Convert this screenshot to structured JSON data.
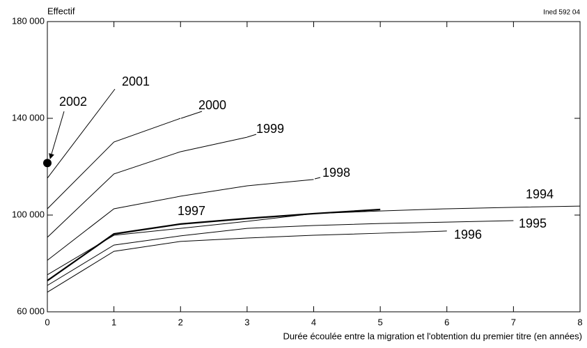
{
  "chart_data": {
    "type": "line",
    "y_label": "Effectif",
    "x_label": "Durée écoulée entre la migration et l'obtention du premier titre (en années)",
    "source": "Ined 592 04",
    "x": [
      0,
      1,
      2,
      3,
      4,
      5,
      6,
      7,
      8
    ],
    "xlim": [
      0,
      8
    ],
    "xticks": [
      0,
      1,
      2,
      3,
      4,
      5,
      6,
      7,
      8
    ],
    "ylim": [
      60000,
      180000
    ],
    "yticks": [
      {
        "value": 60000,
        "label": "60 000"
      },
      {
        "value": 100000,
        "label": "100 000"
      },
      {
        "value": 140000,
        "label": "140 000"
      },
      {
        "value": 180000,
        "label": "180 000"
      }
    ],
    "series": [
      {
        "name": "2002",
        "color": "#000000",
        "marker": "dot",
        "values": [
          121500,
          null,
          null,
          null,
          null,
          null,
          null,
          null,
          null
        ]
      },
      {
        "name": "2001",
        "color": "#000000",
        "values": [
          115000,
          null,
          null,
          null,
          null,
          null,
          null,
          null,
          null
        ]
      },
      {
        "name": "2000",
        "color": "#000000",
        "values": [
          102600,
          130200,
          140000,
          null,
          null,
          null,
          null,
          null,
          null
        ]
      },
      {
        "name": "1999",
        "color": "#000000",
        "values": [
          90800,
          117000,
          126200,
          132200,
          null,
          null,
          null,
          null,
          null
        ]
      },
      {
        "name": "1998",
        "color": "#000000",
        "values": [
          81300,
          102600,
          107800,
          112100,
          114700,
          null,
          null,
          null,
          null
        ]
      },
      {
        "name": "1997",
        "color": "#000000",
        "line_width": 2.2,
        "values": [
          72900,
          92200,
          96300,
          98600,
          100600,
          102300,
          null,
          null,
          null
        ]
      },
      {
        "name": "1994",
        "color": "#000000",
        "values": [
          75300,
          91650,
          94500,
          97400,
          100600,
          101700,
          102600,
          103200,
          103700
        ]
      },
      {
        "name": "1995",
        "color": "#000000",
        "values": [
          70900,
          87600,
          91400,
          94500,
          95700,
          96500,
          97100,
          97700,
          null
        ]
      },
      {
        "name": "1996",
        "color": "#000000",
        "values": [
          68100,
          85000,
          89100,
          90500,
          91650,
          92500,
          93400,
          null,
          null
        ]
      }
    ]
  }
}
